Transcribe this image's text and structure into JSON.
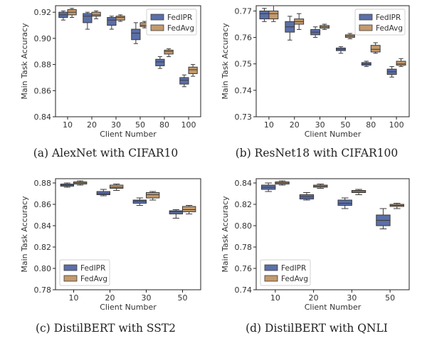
{
  "chart_data": [
    {
      "type": "box",
      "caption": "(a) AlexNet with CIFAR10",
      "xlabel": "Client Number",
      "ylabel": "Main Task Accuracy",
      "categories": [
        "10",
        "20",
        "30",
        "50",
        "80",
        "100"
      ],
      "ylim": [
        0.84,
        0.925
      ],
      "yticks": [
        0.84,
        0.86,
        0.88,
        0.9,
        0.92
      ],
      "ytick_labels": [
        "0.84",
        "0.86",
        "0.88",
        "0.90",
        "0.92"
      ],
      "legend": "top-right",
      "grid": false,
      "series": [
        {
          "name": "FedIPR",
          "color": "#5b6fa8",
          "boxes": [
            {
              "min": 0.914,
              "q1": 0.916,
              "median": 0.918,
              "q3": 0.92,
              "max": 0.921
            },
            {
              "min": 0.907,
              "q1": 0.912,
              "median": 0.917,
              "q3": 0.919,
              "max": 0.92
            },
            {
              "min": 0.907,
              "q1": 0.91,
              "median": 0.914,
              "q3": 0.916,
              "max": 0.917
            },
            {
              "min": 0.896,
              "q1": 0.899,
              "median": 0.904,
              "q3": 0.907,
              "max": 0.912
            },
            {
              "min": 0.877,
              "q1": 0.879,
              "median": 0.882,
              "q3": 0.884,
              "max": 0.886
            },
            {
              "min": 0.863,
              "q1": 0.865,
              "median": 0.868,
              "q3": 0.87,
              "max": 0.872
            }
          ]
        },
        {
          "name": "FedAvg",
          "color": "#c49a6c",
          "boxes": [
            {
              "min": 0.916,
              "q1": 0.918,
              "median": 0.92,
              "q3": 0.922,
              "max": 0.923
            },
            {
              "min": 0.915,
              "q1": 0.917,
              "median": 0.918,
              "q3": 0.92,
              "max": 0.921
            },
            {
              "min": 0.913,
              "q1": 0.914,
              "median": 0.916,
              "q3": 0.917,
              "max": 0.918
            },
            {
              "min": 0.908,
              "q1": 0.909,
              "median": 0.91,
              "q3": 0.912,
              "max": 0.913
            },
            {
              "min": 0.886,
              "q1": 0.888,
              "median": 0.89,
              "q3": 0.891,
              "max": 0.892
            },
            {
              "min": 0.871,
              "q1": 0.873,
              "median": 0.876,
              "q3": 0.878,
              "max": 0.88
            }
          ]
        }
      ]
    },
    {
      "type": "box",
      "caption": "(b) ResNet18 with CIFAR100",
      "xlabel": "Client Number",
      "ylabel": "Main Task Accuracy",
      "categories": [
        "10",
        "20",
        "30",
        "50",
        "80",
        "100"
      ],
      "ylim": [
        0.73,
        0.772
      ],
      "yticks": [
        0.73,
        0.74,
        0.75,
        0.76,
        0.77
      ],
      "ytick_labels": [
        "0.73",
        "0.74",
        "0.75",
        "0.76",
        "0.77"
      ],
      "legend": "top-right",
      "grid": false,
      "series": [
        {
          "name": "FedIPR",
          "color": "#5b6fa8",
          "boxes": [
            {
              "min": 0.766,
              "q1": 0.767,
              "median": 0.769,
              "q3": 0.77,
              "max": 0.771
            },
            {
              "min": 0.759,
              "q1": 0.762,
              "median": 0.764,
              "q3": 0.766,
              "max": 0.768
            },
            {
              "min": 0.76,
              "q1": 0.761,
              "median": 0.762,
              "q3": 0.763,
              "max": 0.764
            },
            {
              "min": 0.754,
              "q1": 0.755,
              "median": 0.7555,
              "q3": 0.756,
              "max": 0.7565
            },
            {
              "min": 0.749,
              "q1": 0.7495,
              "median": 0.75,
              "q3": 0.7505,
              "max": 0.751
            },
            {
              "min": 0.745,
              "q1": 0.746,
              "median": 0.747,
              "q3": 0.748,
              "max": 0.749
            }
          ]
        },
        {
          "name": "FedAvg",
          "color": "#c49a6c",
          "boxes": [
            {
              "min": 0.766,
              "q1": 0.767,
              "median": 0.769,
              "q3": 0.77,
              "max": 0.772
            },
            {
              "min": 0.763,
              "q1": 0.765,
              "median": 0.766,
              "q3": 0.767,
              "max": 0.769
            },
            {
              "min": 0.763,
              "q1": 0.7635,
              "median": 0.764,
              "q3": 0.7645,
              "max": 0.765
            },
            {
              "min": 0.7595,
              "q1": 0.76,
              "median": 0.7605,
              "q3": 0.761,
              "max": 0.7615
            },
            {
              "min": 0.754,
              "q1": 0.7545,
              "median": 0.7555,
              "q3": 0.757,
              "max": 0.758
            },
            {
              "min": 0.749,
              "q1": 0.7495,
              "median": 0.75,
              "q3": 0.751,
              "max": 0.752
            }
          ]
        }
      ]
    },
    {
      "type": "box",
      "caption": "(c) DistilBERT with SST2",
      "xlabel": "Client Number",
      "ylabel": "Main Task Accuracy",
      "categories": [
        "10",
        "20",
        "30",
        "50"
      ],
      "ylim": [
        0.78,
        0.884
      ],
      "yticks": [
        0.78,
        0.8,
        0.82,
        0.84,
        0.86,
        0.88
      ],
      "ytick_labels": [
        "0.78",
        "0.80",
        "0.82",
        "0.84",
        "0.86",
        "0.88"
      ],
      "legend": "bottom-left",
      "grid": false,
      "series": [
        {
          "name": "FedIPR",
          "color": "#5b6fa8",
          "boxes": [
            {
              "min": 0.876,
              "q1": 0.877,
              "median": 0.878,
              "q3": 0.879,
              "max": 0.88
            },
            {
              "min": 0.868,
              "q1": 0.869,
              "median": 0.87,
              "q3": 0.872,
              "max": 0.874
            },
            {
              "min": 0.859,
              "q1": 0.861,
              "median": 0.863,
              "q3": 0.864,
              "max": 0.866
            },
            {
              "min": 0.847,
              "q1": 0.851,
              "median": 0.853,
              "q3": 0.854,
              "max": 0.855
            }
          ]
        },
        {
          "name": "FedAvg",
          "color": "#c49a6c",
          "boxes": [
            {
              "min": 0.878,
              "q1": 0.879,
              "median": 0.88,
              "q3": 0.881,
              "max": 0.882
            },
            {
              "min": 0.873,
              "q1": 0.875,
              "median": 0.876,
              "q3": 0.878,
              "max": 0.879
            },
            {
              "min": 0.864,
              "q1": 0.866,
              "median": 0.869,
              "q3": 0.871,
              "max": 0.872
            },
            {
              "min": 0.851,
              "q1": 0.853,
              "median": 0.855,
              "q3": 0.858,
              "max": 0.859
            }
          ]
        }
      ]
    },
    {
      "type": "box",
      "caption": "(d) DistilBERT with QNLI",
      "xlabel": "Client Number",
      "ylabel": "Main Task Accuracy",
      "categories": [
        "10",
        "20",
        "30",
        "50"
      ],
      "ylim": [
        0.74,
        0.844
      ],
      "yticks": [
        0.74,
        0.76,
        0.78,
        0.8,
        0.82,
        0.84
      ],
      "ytick_labels": [
        "0.74",
        "0.76",
        "0.78",
        "0.80",
        "0.82",
        "0.84"
      ],
      "legend": "bottom-left",
      "grid": false,
      "series": [
        {
          "name": "FedIPR",
          "color": "#5b6fa8",
          "boxes": [
            {
              "min": 0.832,
              "q1": 0.834,
              "median": 0.836,
              "q3": 0.838,
              "max": 0.84
            },
            {
              "min": 0.824,
              "q1": 0.825,
              "median": 0.827,
              "q3": 0.829,
              "max": 0.831
            },
            {
              "min": 0.816,
              "q1": 0.819,
              "median": 0.821,
              "q3": 0.824,
              "max": 0.826
            },
            {
              "min": 0.797,
              "q1": 0.8,
              "median": 0.805,
              "q3": 0.81,
              "max": 0.816
            }
          ]
        },
        {
          "name": "FedAvg",
          "color": "#c49a6c",
          "boxes": [
            {
              "min": 0.838,
              "q1": 0.839,
              "median": 0.84,
              "q3": 0.841,
              "max": 0.842
            },
            {
              "min": 0.835,
              "q1": 0.836,
              "median": 0.837,
              "q3": 0.838,
              "max": 0.839
            },
            {
              "min": 0.829,
              "q1": 0.831,
              "median": 0.832,
              "q3": 0.833,
              "max": 0.834
            },
            {
              "min": 0.816,
              "q1": 0.818,
              "median": 0.819,
              "q3": 0.82,
              "max": 0.821
            }
          ]
        }
      ]
    }
  ]
}
